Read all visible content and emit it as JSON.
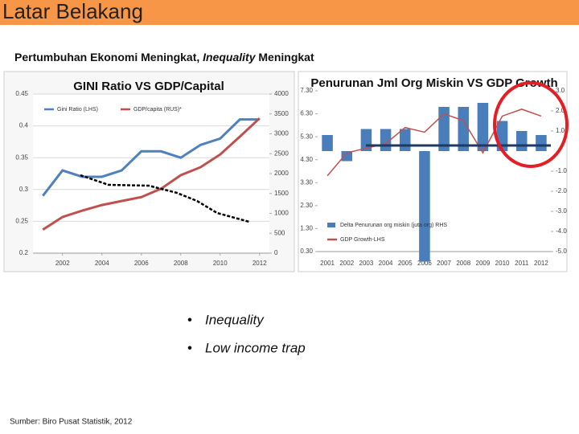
{
  "header": {
    "title": "Latar Belakang"
  },
  "subtitle": [
    "Pertumbuhan Ekonomi Meningkat, ",
    "Inequality",
    " Meningkat"
  ],
  "bullets": [
    "Inequality",
    "Low income trap"
  ],
  "source": "Sumber: Biro Pusat Statistik, 2012",
  "chart_data": [
    {
      "type": "line",
      "title": "GINI Ratio VS GDP/Capital",
      "x": [
        2001,
        2002,
        2003,
        2004,
        2005,
        2006,
        2007,
        2008,
        2009,
        2010,
        2011,
        2012
      ],
      "xlim": [
        2000.5,
        2012.5
      ],
      "xticks": [
        2002,
        2004,
        2006,
        2008,
        2010,
        2012
      ],
      "ylim": [
        0.2,
        0.45
      ],
      "yticks": [
        0.2,
        0.25,
        0.3,
        0.35,
        0.4,
        0.45
      ],
      "y2lim": [
        0,
        4000
      ],
      "y2ticks": [
        0,
        500,
        1000,
        1500,
        2000,
        2500,
        3000,
        3500,
        4000
      ],
      "grid": true,
      "legend": "upper-left",
      "series": [
        {
          "name": "Gini Ratio (LHS)",
          "color": "#4f81bd",
          "values": [
            0.29,
            0.33,
            0.32,
            0.32,
            0.33,
            0.36,
            0.36,
            0.35,
            0.37,
            0.38,
            0.41,
            0.41
          ]
        },
        {
          "name": "GDP/capita (RUS)*",
          "color": "#c0504d",
          "axis": "y2",
          "values": [
            590,
            910,
            1070,
            1210,
            1310,
            1410,
            1620,
            1960,
            2160,
            2480,
            2930,
            3390
          ]
        }
      ]
    },
    {
      "type": "bar",
      "title": "Penurunan Jml Org Miskin VS GDP Growth",
      "categories": [
        "2001",
        "2002",
        "2003",
        "2004",
        "2005",
        "2006",
        "2007",
        "2008",
        "2009",
        "2010",
        "2011",
        "2012"
      ],
      "ylim": [
        0.3,
        7.3
      ],
      "yticks": [
        {
          "value": 0.3,
          "label": "0.30"
        },
        {
          "value": 1.3,
          "label": "1.30"
        },
        {
          "value": 2.3,
          "label": "2.30"
        },
        {
          "value": 3.3,
          "label": "3.30"
        },
        {
          "value": 4.3,
          "label": "4.30"
        },
        {
          "value": 5.3,
          "label": "5.30"
        },
        {
          "value": 6.3,
          "label": "6.30"
        },
        {
          "value": 7.3,
          "label": "7.30"
        }
      ],
      "y2lim": [
        -5,
        3
      ],
      "y2ticks": [
        {
          "value": 3,
          "label": "3.0"
        },
        {
          "value": 2,
          "label": "2.0"
        },
        {
          "value": 1,
          "label": "1.0"
        },
        {
          "value": -1,
          "label": "-1.0"
        },
        {
          "value": -2,
          "label": "-2.0"
        },
        {
          "value": -3,
          "label": "-3.0"
        },
        {
          "value": -4,
          "label": "-4.0"
        },
        {
          "value": -5,
          "label": "-5.0"
        }
      ],
      "grid": false,
      "legend": "lower-left",
      "series": [
        {
          "name": "Delta Penurunan org miskin (juta org) RHS",
          "color": "#4a7ebb",
          "type": "bar",
          "axis": "y2",
          "values": [
            0.8,
            -0.5,
            1.1,
            1.1,
            1.1,
            -5.5,
            2.2,
            2.2,
            2.4,
            1.5,
            1.0,
            0.8
          ]
        },
        {
          "name": "GDP Growth-LHS",
          "color": "#c0504d",
          "type": "line",
          "values": [
            3.6,
            4.6,
            4.8,
            5.0,
            5.7,
            5.5,
            6.3,
            6.0,
            4.6,
            6.2,
            6.5,
            6.2
          ]
        }
      ]
    }
  ]
}
